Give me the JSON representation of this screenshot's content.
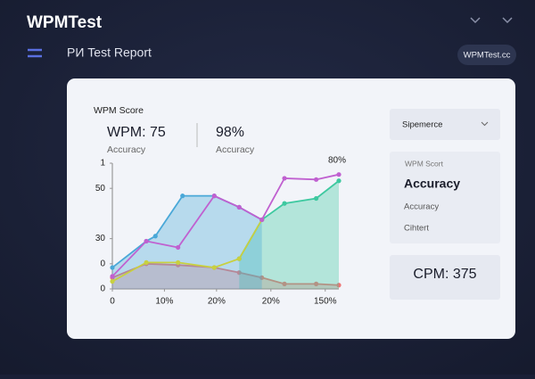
{
  "header": {
    "title": "WPMTest",
    "subtitle": "PИ Test Report",
    "button": "WPMTest.cc"
  },
  "card": {
    "heading": "WPM Score",
    "stats": [
      {
        "value": "WPM: 75",
        "label": "Accuracy"
      },
      {
        "value": "98%",
        "label": "Accuracy"
      }
    ]
  },
  "side": {
    "dropdown": "Sipemerce",
    "panel": {
      "label": "WPM Scort",
      "title": "Accuracy",
      "item1": "Accuracy",
      "item2": "Cihtert"
    },
    "cpm": "CPM: 375"
  },
  "chart_data": {
    "type": "area",
    "annotation": "80%",
    "xlim": [
      0,
      100
    ],
    "xticks": [
      0,
      {
        "value": 23,
        "label": "10%"
      },
      {
        "value": 46,
        "label": "20%"
      },
      {
        "value": 70,
        "label": "20%"
      },
      {
        "value": 94,
        "label": "150%"
      }
    ],
    "ylim": [
      0,
      100
    ],
    "yticks": [
      0,
      {
        "value": 20,
        "label": "0"
      },
      {
        "value": 40,
        "label": "30"
      },
      {
        "value": 80,
        "label": "50"
      },
      {
        "value": 100,
        "label": "1"
      }
    ],
    "series": [
      {
        "color": "#f07575",
        "fill": true,
        "x": [
          0,
          15,
          29,
          45,
          56,
          66,
          76,
          90,
          100
        ],
        "values": [
          9,
          20,
          19,
          17,
          13,
          9,
          4,
          4,
          3
        ]
      },
      {
        "color": "#3ec9a0",
        "fill": true,
        "x": [
          56,
          66,
          76,
          90,
          100
        ],
        "values": [
          24,
          55,
          68,
          72,
          86
        ]
      },
      {
        "color": "#4aa8d8",
        "fill": true,
        "x": [
          0,
          15,
          19,
          31,
          45,
          56,
          66
        ],
        "values": [
          17,
          38,
          42,
          74,
          74,
          65,
          55
        ]
      },
      {
        "color": "#c8d040",
        "fill": false,
        "x": [
          0,
          15,
          29,
          45,
          56,
          66
        ],
        "values": [
          6,
          21,
          21,
          17,
          24,
          55
        ]
      },
      {
        "color": "#c060d0",
        "fill": false,
        "x": [
          0,
          15,
          29,
          45,
          56,
          66,
          76,
          90,
          100
        ],
        "values": [
          10,
          38,
          33,
          74,
          65,
          55,
          88,
          87,
          91
        ]
      }
    ]
  }
}
